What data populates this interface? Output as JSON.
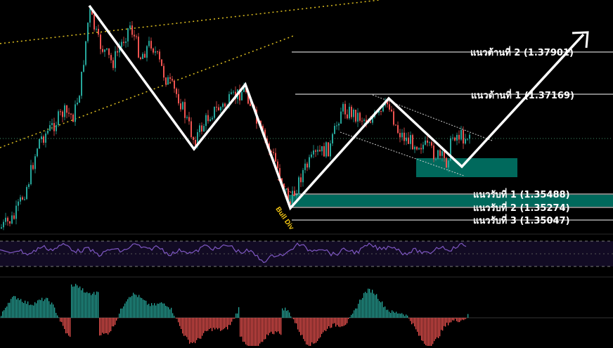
{
  "chart_data": [
    {
      "type": "candlestick",
      "title": "",
      "annotations": {
        "resistance_levels": [
          {
            "label": "แนวต้านที่ 2 (1.37901)",
            "value": 1.37901
          },
          {
            "label": "แนวต้านที่ 1 (1.37169)",
            "value": 1.37169
          }
        ],
        "support_levels": [
          {
            "label": "แนวรับที่ 1 (1.35488)",
            "value": 1.35488
          },
          {
            "label": "แนวรับที่ 2 (1.35274)",
            "value": 1.35274
          },
          {
            "label": "แนวรับที่ 3 (1.35047)",
            "value": 1.35047
          }
        ],
        "divergence_label": "Bull Div",
        "zig_zag_path": "projected continuation upward, arrow pointing up-right",
        "support_zones": "two teal demand zones"
      },
      "colors": {
        "up_candle": "#26a69a",
        "down_candle": "#ef5350",
        "zig_zag": "#ffffff",
        "zone": "#00695c",
        "channel": "#e0c020",
        "label_divergence": "#f3c614"
      }
    },
    {
      "type": "line",
      "indicator": "oscillator",
      "colors": {
        "line": "#7e57c2",
        "band_fill": "#1a1030"
      }
    },
    {
      "type": "bar",
      "indicator": "histogram",
      "colors": {
        "positive": "#26a69a",
        "negative": "#ef5350"
      }
    }
  ]
}
